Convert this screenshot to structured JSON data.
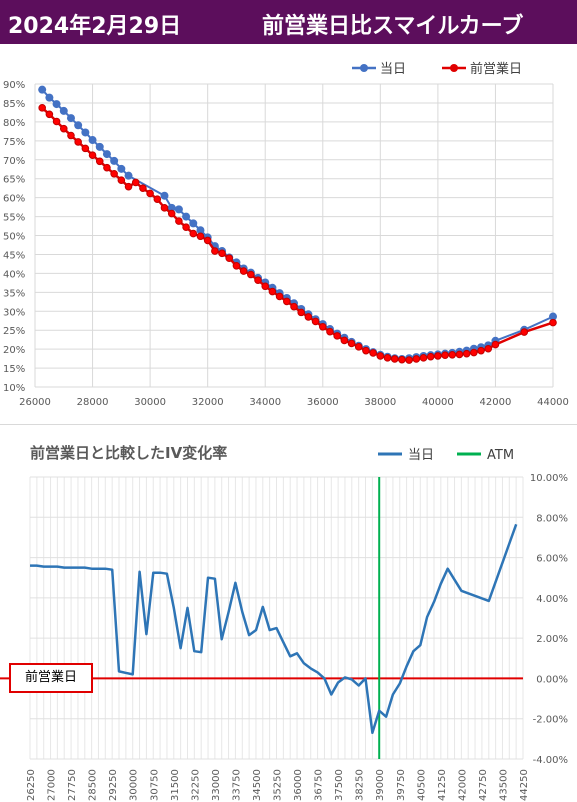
{
  "header": {
    "date": "2024年2月29日",
    "title": "前営業日比スマイルカーブ"
  },
  "colors": {
    "banner": "#5c0e5c",
    "today": "#4472c4",
    "prev": "#e00000",
    "iv": "#2e75b6",
    "atm": "#00b050",
    "zero": "#e00000"
  },
  "callout_label": "前営業日",
  "chart_data": [
    {
      "type": "line",
      "title": "",
      "xlim": [
        26000,
        44000
      ],
      "ylim": [
        10,
        90
      ],
      "x_ticks": [
        "26000",
        "28000",
        "30000",
        "32000",
        "34000",
        "36000",
        "38000",
        "40000",
        "42000",
        "44000"
      ],
      "y_ticks": [
        "10%",
        "15%",
        "20%",
        "25%",
        "30%",
        "35%",
        "40%",
        "45%",
        "50%",
        "55%",
        "60%",
        "65%",
        "70%",
        "75%",
        "80%",
        "85%",
        "90%"
      ],
      "legend": [
        "当日",
        "前営業日"
      ],
      "legend_position": "top-right",
      "series": [
        {
          "name": "当日",
          "x": [
            26250,
            26500,
            26750,
            27000,
            27250,
            27500,
            27750,
            28000,
            28250,
            28500,
            28750,
            29000,
            29250,
            30500,
            30750,
            31000,
            31250,
            31500,
            31750,
            32000,
            32250,
            32500,
            32750,
            33000,
            33250,
            33500,
            33750,
            34000,
            34250,
            34500,
            34750,
            35000,
            35250,
            35500,
            35750,
            36000,
            36250,
            36500,
            36750,
            37000,
            37250,
            37500,
            37750,
            38000,
            38250,
            38500,
            38750,
            39000,
            39250,
            39500,
            39750,
            40000,
            40250,
            40500,
            40750,
            41000,
            41250,
            41500,
            41750,
            42000,
            43000,
            44000
          ],
          "values": [
            88.5,
            86.4,
            84.7,
            82.9,
            81.0,
            79.1,
            77.2,
            75.2,
            73.4,
            71.5,
            69.7,
            67.6,
            65.8,
            60.5,
            57.3,
            56.9,
            55.0,
            53.2,
            51.4,
            49.5,
            47.2,
            45.9,
            44.2,
            42.9,
            41.3,
            40.2,
            38.8,
            37.6,
            36.2,
            34.8,
            33.5,
            32.1,
            30.6,
            29.2,
            27.9,
            26.6,
            25.3,
            24.1,
            23.0,
            21.9,
            20.9,
            20.0,
            19.2,
            18.5,
            18.0,
            17.6,
            17.4,
            17.6,
            17.9,
            18.2,
            18.4,
            18.6,
            18.8,
            19.0,
            19.3,
            19.6,
            20.1,
            20.5,
            21.0,
            22.2,
            25.1,
            28.6
          ]
        },
        {
          "name": "前営業日",
          "x": [
            26250,
            26500,
            26750,
            27000,
            27250,
            27500,
            27750,
            28000,
            28250,
            28500,
            28750,
            29000,
            29250,
            29500,
            29750,
            30000,
            30250,
            30500,
            30750,
            31000,
            31250,
            31500,
            31750,
            32000,
            32250,
            32500,
            32750,
            33000,
            33250,
            33500,
            33750,
            34000,
            34250,
            34500,
            34750,
            35000,
            35250,
            35500,
            35750,
            36000,
            36250,
            36500,
            36750,
            37000,
            37250,
            37500,
            37750,
            38000,
            38250,
            38500,
            38750,
            39000,
            39250,
            39500,
            39750,
            40000,
            40250,
            40500,
            40750,
            41000,
            41250,
            41500,
            41750,
            42000,
            43000,
            44000
          ],
          "values": [
            83.7,
            82.0,
            80.1,
            78.2,
            76.4,
            74.7,
            73.0,
            71.2,
            69.6,
            67.9,
            66.3,
            64.6,
            62.9,
            64.0,
            62.5,
            61.1,
            59.6,
            57.3,
            55.8,
            53.8,
            52.2,
            50.5,
            49.8,
            48.7,
            45.9,
            45.3,
            44.0,
            42.0,
            40.6,
            39.7,
            38.2,
            36.6,
            35.2,
            33.9,
            32.6,
            31.2,
            29.7,
            28.5,
            27.3,
            25.9,
            24.6,
            23.5,
            22.3,
            21.5,
            20.6,
            19.6,
            19.0,
            18.2,
            17.7,
            17.4,
            17.2,
            17.1,
            17.4,
            17.7,
            18.0,
            18.2,
            18.4,
            18.5,
            18.6,
            18.8,
            19.1,
            19.6,
            20.1,
            21.2,
            24.5,
            27.0
          ]
        }
      ]
    },
    {
      "type": "line",
      "title": "前営業日と比較したIV変化率",
      "ylim": [
        -4,
        10
      ],
      "y_ticks": [
        "10.00%",
        "8.00%",
        "6.00%",
        "4.00%",
        "2.00%",
        "0.00%",
        "-2.00%",
        "-4.00%"
      ],
      "x_ticks": [
        "26250",
        "27000",
        "27750",
        "28500",
        "29250",
        "30000",
        "30750",
        "31500",
        "32250",
        "33000",
        "33750",
        "34500",
        "35250",
        "36000",
        "36750",
        "37500",
        "38250",
        "39000",
        "39750",
        "40500",
        "41250",
        "42000",
        "42750",
        "43500",
        "44250"
      ],
      "legend": [
        "当日",
        "ATM"
      ],
      "legend_position": "top-right",
      "atm_x": 39000,
      "baseline": 0,
      "series": [
        {
          "name": "当日",
          "x": [
            26250,
            26500,
            26750,
            27000,
            27250,
            27500,
            27750,
            28000,
            28250,
            28500,
            28750,
            29000,
            29250,
            29500,
            30000,
            30250,
            30500,
            30750,
            31000,
            31250,
            31500,
            31750,
            32000,
            32250,
            32500,
            32750,
            33000,
            33250,
            33500,
            33750,
            34000,
            34250,
            34500,
            34750,
            35000,
            35250,
            35500,
            35750,
            36000,
            36250,
            36500,
            36750,
            37000,
            37250,
            37500,
            37750,
            38000,
            38250,
            38500,
            38750,
            39000,
            39250,
            39500,
            39750,
            40000,
            40250,
            40500,
            40750,
            41000,
            41250,
            41500,
            41750,
            42000,
            43000,
            44000
          ],
          "values": [
            5.6,
            5.6,
            5.55,
            5.55,
            5.55,
            5.5,
            5.5,
            5.5,
            5.5,
            5.45,
            5.45,
            5.45,
            5.4,
            0.35,
            0.2,
            5.3,
            2.2,
            5.25,
            5.25,
            5.2,
            3.5,
            1.5,
            3.5,
            1.35,
            1.3,
            5.0,
            4.95,
            1.95,
            3.3,
            4.75,
            3.3,
            2.15,
            2.4,
            3.55,
            2.4,
            2.5,
            1.8,
            1.1,
            1.25,
            0.75,
            0.5,
            0.3,
            0.0,
            -0.8,
            -0.2,
            0.05,
            -0.05,
            -0.35,
            0.0,
            -2.7,
            -1.6,
            -1.9,
            -0.8,
            -0.25,
            0.6,
            1.35,
            1.65,
            3.05,
            3.8,
            4.7,
            5.45,
            4.9,
            4.35,
            3.85,
            7.65
          ]
        }
      ]
    }
  ]
}
